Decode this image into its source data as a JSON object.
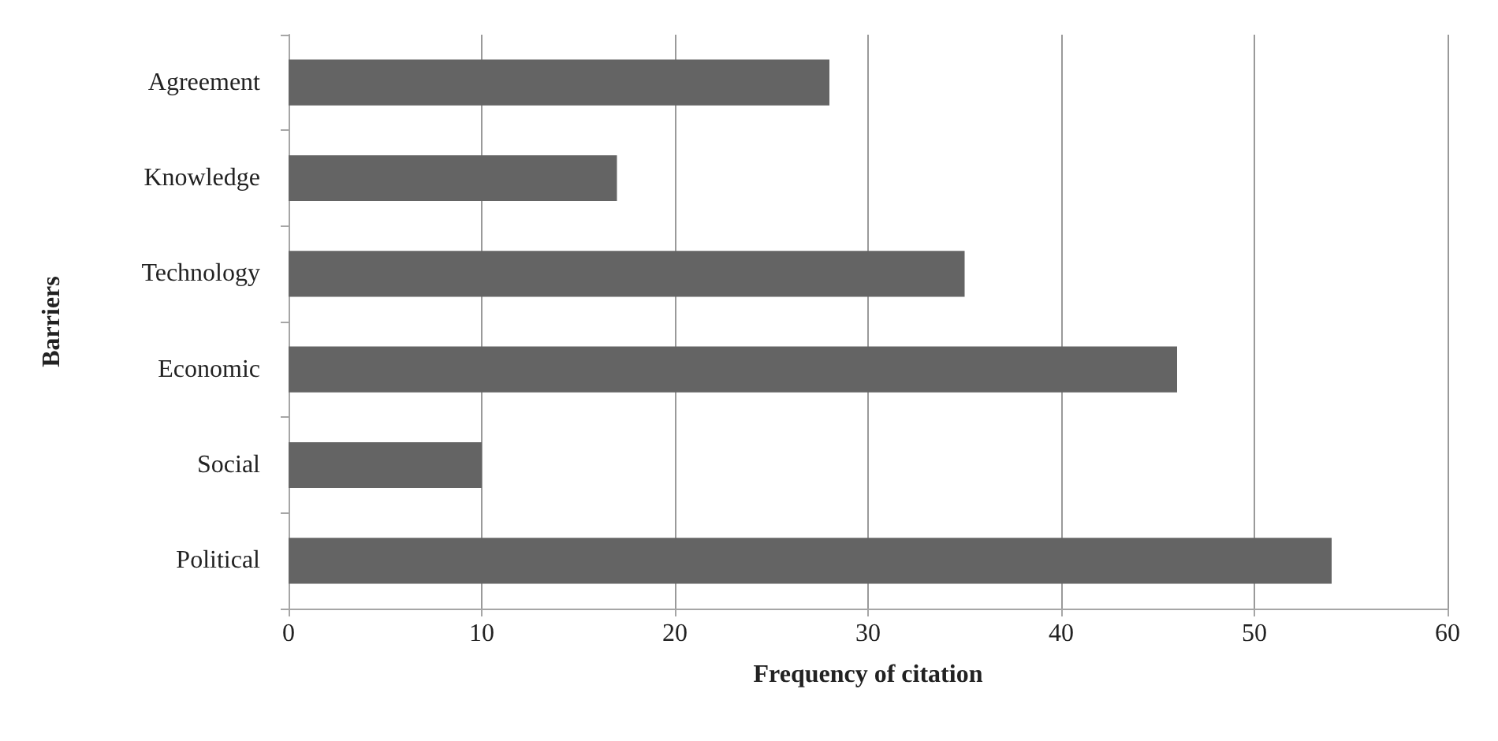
{
  "chart_data": {
    "type": "bar",
    "orientation": "horizontal",
    "xlabel": "Frequency of citation",
    "ylabel": "Barriers",
    "categories": [
      "Agreement",
      "Knowledge",
      "Technology",
      "Economic",
      "Social",
      "Political"
    ],
    "values": [
      28,
      17,
      35,
      46,
      10,
      54
    ],
    "color": "#646464",
    "xlim": [
      0,
      60
    ],
    "xticks": [
      0,
      10,
      20,
      30,
      40,
      50,
      60
    ],
    "grid": "x"
  }
}
